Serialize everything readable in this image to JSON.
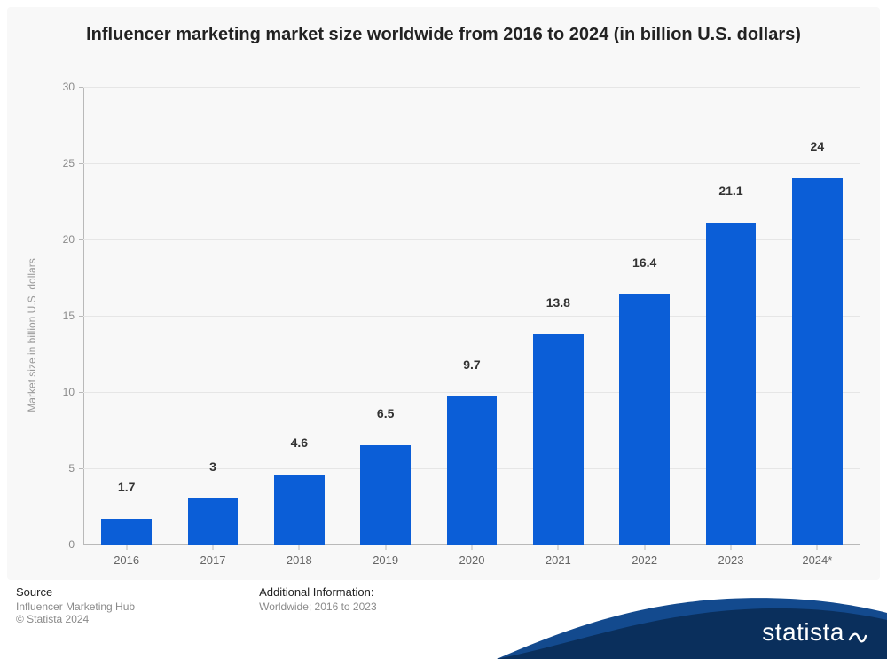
{
  "chart": {
    "type": "bar",
    "title": "Influencer marketing market size worldwide from 2016 to 2024 (in billion U.S. dollars)",
    "title_fontsize": 20,
    "title_color": "#222222",
    "ylabel": "Market size in billion U.S. dollars",
    "ylabel_fontsize": 12,
    "ylabel_color": "#9a9a9a",
    "background_color": "#f8f8f8",
    "grid_color": "#e6e6e6",
    "axis_color": "#b9b9b9",
    "ylim": [
      0,
      30
    ],
    "ytick_step": 5,
    "yticks": [
      0,
      5,
      10,
      15,
      20,
      25,
      30
    ],
    "categories": [
      "2016",
      "2017",
      "2018",
      "2019",
      "2020",
      "2021",
      "2022",
      "2023",
      "2024*"
    ],
    "values": [
      1.7,
      3,
      4.6,
      6.5,
      9.7,
      13.8,
      16.4,
      21.1,
      24
    ],
    "value_labels": [
      "1.7",
      "3",
      "4.6",
      "6.5",
      "9.7",
      "13.8",
      "16.4",
      "21.1",
      "24"
    ],
    "bar_color": "#0b5ed7",
    "bar_width_ratio": 0.58,
    "value_label_fontsize": 14,
    "value_label_color": "#333333",
    "xtick_fontsize": 13,
    "xtick_color": "#666666",
    "ytick_fontsize": 12,
    "ytick_color": "#8a8a8a"
  },
  "footer": {
    "source_heading": "Source",
    "source_text": "Influencer Marketing Hub",
    "copyright": "© Statista 2024",
    "info_heading": "Additional Information:",
    "info_text": "Worldwide; 2016 to 2023"
  },
  "branding": {
    "logo_text": "statista",
    "swoosh_fill": "#0a2f5c",
    "swoosh_highlight": "#134a8e"
  }
}
